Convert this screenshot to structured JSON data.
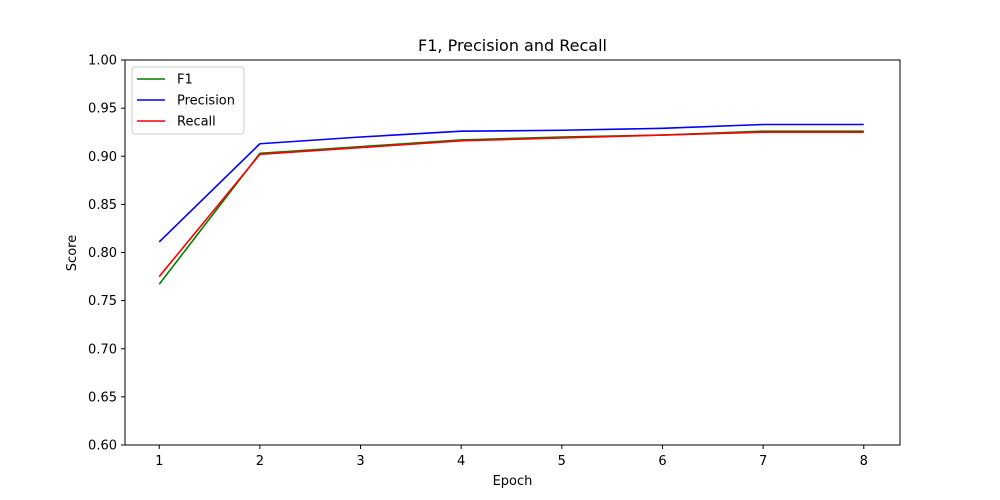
{
  "chart_data": {
    "type": "line",
    "title": "F1, Precision and Recall",
    "xlabel": "Epoch",
    "ylabel": "Score",
    "x": [
      1,
      2,
      3,
      4,
      5,
      6,
      7,
      8
    ],
    "xlim": [
      0.66,
      8.36
    ],
    "ylim": [
      0.6,
      1.0
    ],
    "xticks": [
      "1",
      "2",
      "3",
      "4",
      "5",
      "6",
      "7",
      "8"
    ],
    "yticks": [
      "0.60",
      "0.65",
      "0.70",
      "0.75",
      "0.80",
      "0.85",
      "0.90",
      "0.95",
      "1.00"
    ],
    "grid": false,
    "legend_position": "top-left",
    "series": [
      {
        "name": "F1",
        "color": "#008000",
        "values": [
          0.767,
          0.903,
          0.91,
          0.917,
          0.92,
          0.922,
          0.926,
          0.926
        ]
      },
      {
        "name": "Precision",
        "color": "#0000ff",
        "values": [
          0.811,
          0.913,
          0.92,
          0.926,
          0.927,
          0.929,
          0.933,
          0.933
        ]
      },
      {
        "name": "Recall",
        "color": "#ff0000",
        "values": [
          0.775,
          0.902,
          0.909,
          0.916,
          0.919,
          0.922,
          0.925,
          0.925
        ]
      }
    ]
  }
}
